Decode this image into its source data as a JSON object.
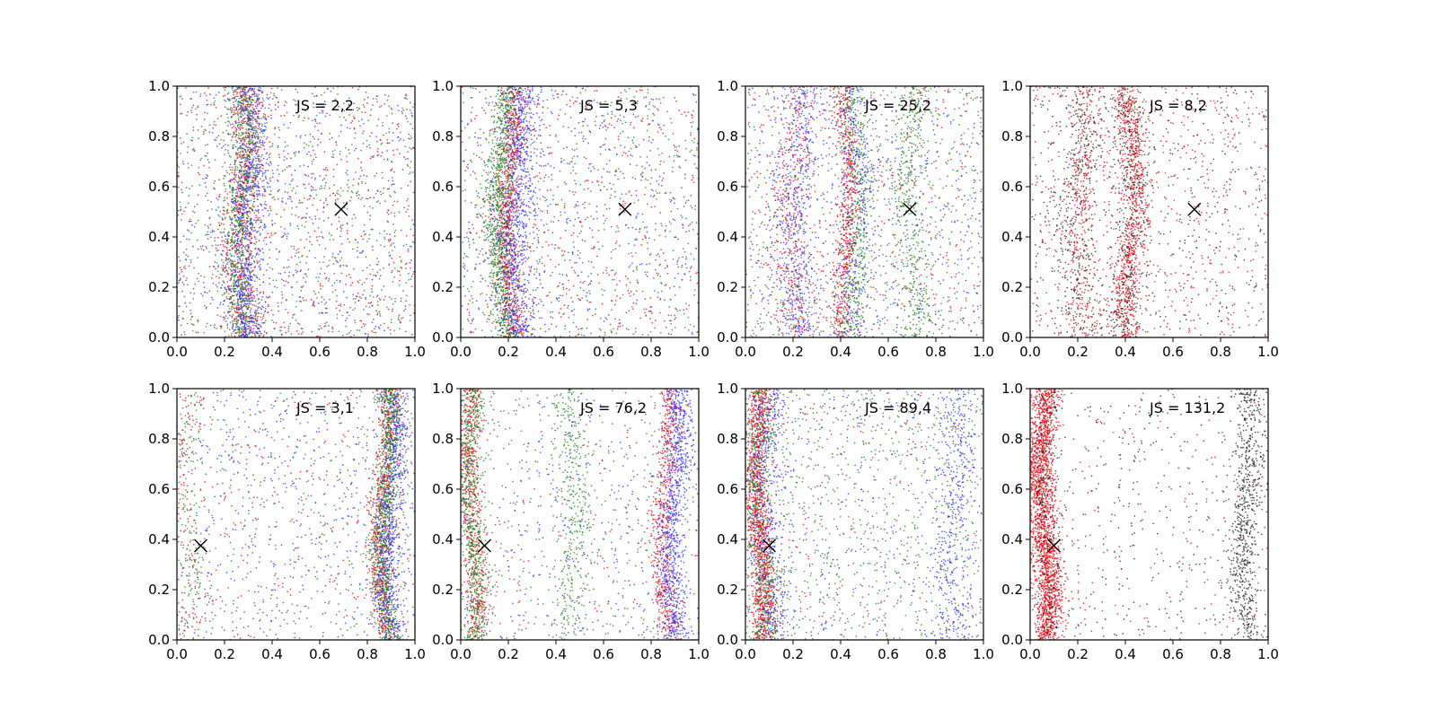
{
  "figure": {
    "layout": {
      "rows": 2,
      "cols": 4
    },
    "marker_color": "#000000",
    "series_colors": {
      "red": "#e8000b",
      "green": "#1a7f1a",
      "blue": "#2b2bff",
      "black": "#222222"
    }
  },
  "chart_data": [
    {
      "type": "scatter",
      "title": "JS = 2,2",
      "xlim": [
        0,
        1
      ],
      "ylim": [
        0,
        1
      ],
      "xticks": [
        "0.0",
        "0.2",
        "0.4",
        "0.6",
        "0.8",
        "1.0"
      ],
      "yticks": [
        "0.0",
        "0.2",
        "0.4",
        "0.6",
        "0.8",
        "1.0"
      ],
      "marker": {
        "symbol": "x",
        "x": 0.69,
        "y": 0.51
      },
      "series": [
        {
          "color": "#e8000b",
          "bands": [
            {
              "x": 0.28,
              "spread": 0.04,
              "weight": 0.55
            }
          ],
          "uniform": 0.45,
          "count": 1400
        },
        {
          "color": "#1a7f1a",
          "bands": [
            {
              "x": 0.27,
              "spread": 0.035,
              "weight": 0.6
            }
          ],
          "uniform": 0.4,
          "count": 1400
        },
        {
          "color": "#2b2bff",
          "bands": [
            {
              "x": 0.3,
              "spread": 0.04,
              "weight": 0.55
            }
          ],
          "uniform": 0.45,
          "count": 1400
        }
      ]
    },
    {
      "type": "scatter",
      "title": "JS = 5,3",
      "xlim": [
        0,
        1
      ],
      "ylim": [
        0,
        1
      ],
      "xticks": [
        "0.0",
        "0.2",
        "0.4",
        "0.6",
        "0.8",
        "1.0"
      ],
      "yticks": [
        "0.0",
        "0.2",
        "0.4",
        "0.6",
        "0.8",
        "1.0"
      ],
      "marker": {
        "symbol": "x",
        "x": 0.69,
        "y": 0.51
      },
      "series": [
        {
          "color": "#e8000b",
          "bands": [
            {
              "x": 0.21,
              "spread": 0.025,
              "weight": 0.6
            }
          ],
          "uniform": 0.4,
          "count": 1400
        },
        {
          "color": "#1a7f1a",
          "bands": [
            {
              "x": 0.17,
              "spread": 0.03,
              "weight": 0.65
            }
          ],
          "uniform": 0.35,
          "count": 1400
        },
        {
          "color": "#2b2bff",
          "bands": [
            {
              "x": 0.24,
              "spread": 0.04,
              "weight": 0.6
            }
          ],
          "uniform": 0.4,
          "count": 1400
        }
      ]
    },
    {
      "type": "scatter",
      "title": "JS = 25,2",
      "xlim": [
        0,
        1
      ],
      "ylim": [
        0,
        1
      ],
      "xticks": [
        "0.0",
        "0.2",
        "0.4",
        "0.6",
        "0.8",
        "1.0"
      ],
      "yticks": [
        "0.0",
        "0.2",
        "0.4",
        "0.6",
        "0.8",
        "1.0"
      ],
      "marker": {
        "symbol": "x",
        "x": 0.69,
        "y": 0.51
      },
      "series": [
        {
          "color": "#e8000b",
          "bands": [
            {
              "x": 0.42,
              "spread": 0.025,
              "weight": 0.4
            },
            {
              "x": 0.2,
              "spread": 0.04,
              "weight": 0.25
            }
          ],
          "uniform": 0.35,
          "count": 1400
        },
        {
          "color": "#1a7f1a",
          "bands": [
            {
              "x": 0.46,
              "spread": 0.03,
              "weight": 0.35
            },
            {
              "x": 0.7,
              "spread": 0.035,
              "weight": 0.3
            }
          ],
          "uniform": 0.35,
          "count": 1400
        },
        {
          "color": "#2b2bff",
          "bands": [
            {
              "x": 0.22,
              "spread": 0.05,
              "weight": 0.35
            },
            {
              "x": 0.46,
              "spread": 0.04,
              "weight": 0.25
            }
          ],
          "uniform": 0.4,
          "count": 1400
        }
      ]
    },
    {
      "type": "scatter",
      "title": "JS = 8,2",
      "xlim": [
        0,
        1
      ],
      "ylim": [
        0,
        1
      ],
      "xticks": [
        "0.0",
        "0.2",
        "0.4",
        "0.6",
        "0.8",
        "1.0"
      ],
      "yticks": [
        "0.0",
        "0.2",
        "0.4",
        "0.6",
        "0.8",
        "1.0"
      ],
      "marker": {
        "symbol": "x",
        "x": 0.69,
        "y": 0.51
      },
      "series": [
        {
          "color": "#e8000b",
          "bands": [
            {
              "x": 0.42,
              "spread": 0.03,
              "weight": 0.45
            },
            {
              "x": 0.22,
              "spread": 0.04,
              "weight": 0.2
            }
          ],
          "uniform": 0.35,
          "count": 1800
        },
        {
          "color": "#222222",
          "bands": [
            {
              "x": 0.42,
              "spread": 0.04,
              "weight": 0.3
            },
            {
              "x": 0.2,
              "spread": 0.05,
              "weight": 0.3
            }
          ],
          "uniform": 0.4,
          "count": 1200
        }
      ]
    },
    {
      "type": "scatter",
      "title": "JS = 3,1",
      "xlim": [
        0,
        1
      ],
      "ylim": [
        0,
        1
      ],
      "xticks": [
        "0.0",
        "0.2",
        "0.4",
        "0.6",
        "0.8",
        "1.0"
      ],
      "yticks": [
        "0.0",
        "0.2",
        "0.4",
        "0.6",
        "0.8",
        "1.0"
      ],
      "marker": {
        "symbol": "x",
        "x": 0.1,
        "y": 0.375
      },
      "series": [
        {
          "color": "#e8000b",
          "bands": [
            {
              "x": 0.87,
              "spread": 0.025,
              "weight": 0.6
            },
            {
              "x": 0.04,
              "spread": 0.03,
              "weight": 0.1
            }
          ],
          "uniform": 0.3,
          "count": 1200
        },
        {
          "color": "#1a7f1a",
          "bands": [
            {
              "x": 0.88,
              "spread": 0.025,
              "weight": 0.7
            },
            {
              "x": 0.05,
              "spread": 0.03,
              "weight": 0.1
            }
          ],
          "uniform": 0.2,
          "count": 1400
        },
        {
          "color": "#2b2bff",
          "bands": [
            {
              "x": 0.9,
              "spread": 0.03,
              "weight": 0.55
            }
          ],
          "uniform": 0.45,
          "count": 1200
        }
      ]
    },
    {
      "type": "scatter",
      "title": "JS = 76,2",
      "xlim": [
        0,
        1
      ],
      "ylim": [
        0,
        1
      ],
      "xticks": [
        "0.0",
        "0.2",
        "0.4",
        "0.6",
        "0.8",
        "1.0"
      ],
      "yticks": [
        "0.0",
        "0.2",
        "0.4",
        "0.6",
        "0.8",
        "1.0"
      ],
      "marker": {
        "symbol": "x",
        "x": 0.1,
        "y": 0.375
      },
      "series": [
        {
          "color": "#e8000b",
          "bands": [
            {
              "x": 0.05,
              "spread": 0.025,
              "weight": 0.45
            },
            {
              "x": 0.86,
              "spread": 0.025,
              "weight": 0.4
            }
          ],
          "uniform": 0.15,
          "count": 1400
        },
        {
          "color": "#1a7f1a",
          "bands": [
            {
              "x": 0.05,
              "spread": 0.025,
              "weight": 0.5
            },
            {
              "x": 0.47,
              "spread": 0.035,
              "weight": 0.3
            }
          ],
          "uniform": 0.2,
          "count": 1300
        },
        {
          "color": "#2b2bff",
          "bands": [
            {
              "x": 0.9,
              "spread": 0.03,
              "weight": 0.65
            }
          ],
          "uniform": 0.35,
          "count": 1300
        }
      ]
    },
    {
      "type": "scatter",
      "title": "JS = 89,4",
      "xlim": [
        0,
        1
      ],
      "ylim": [
        0,
        1
      ],
      "xticks": [
        "0.0",
        "0.2",
        "0.4",
        "0.6",
        "0.8",
        "1.0"
      ],
      "yticks": [
        "0.0",
        "0.2",
        "0.4",
        "0.6",
        "0.8",
        "1.0"
      ],
      "marker": {
        "symbol": "x",
        "x": 0.1,
        "y": 0.375
      },
      "series": [
        {
          "color": "#e8000b",
          "bands": [
            {
              "x": 0.06,
              "spread": 0.025,
              "weight": 0.85
            }
          ],
          "uniform": 0.15,
          "count": 1500
        },
        {
          "color": "#1a7f1a",
          "bands": [
            {
              "x": 0.07,
              "spread": 0.035,
              "weight": 0.4
            }
          ],
          "uniform": 0.6,
          "count": 1300
        },
        {
          "color": "#2b2bff",
          "bands": [
            {
              "x": 0.1,
              "spread": 0.04,
              "weight": 0.35
            },
            {
              "x": 0.88,
              "spread": 0.04,
              "weight": 0.3
            }
          ],
          "uniform": 0.35,
          "count": 1300
        }
      ]
    },
    {
      "type": "scatter",
      "title": "JS = 131,2",
      "xlim": [
        0,
        1
      ],
      "ylim": [
        0,
        1
      ],
      "xticks": [
        "0.0",
        "0.2",
        "0.4",
        "0.6",
        "0.8",
        "1.0"
      ],
      "yticks": [
        "0.0",
        "0.2",
        "0.4",
        "0.6",
        "0.8",
        "1.0"
      ],
      "marker": {
        "symbol": "x",
        "x": 0.1,
        "y": 0.375
      },
      "series": [
        {
          "color": "#e8000b",
          "bands": [
            {
              "x": 0.06,
              "spread": 0.03,
              "weight": 0.9
            }
          ],
          "uniform": 0.1,
          "count": 2200
        },
        {
          "color": "#222222",
          "bands": [
            {
              "x": 0.91,
              "spread": 0.03,
              "weight": 0.55
            },
            {
              "x": 0.07,
              "spread": 0.03,
              "weight": 0.15
            }
          ],
          "uniform": 0.3,
          "count": 1300
        }
      ]
    }
  ]
}
